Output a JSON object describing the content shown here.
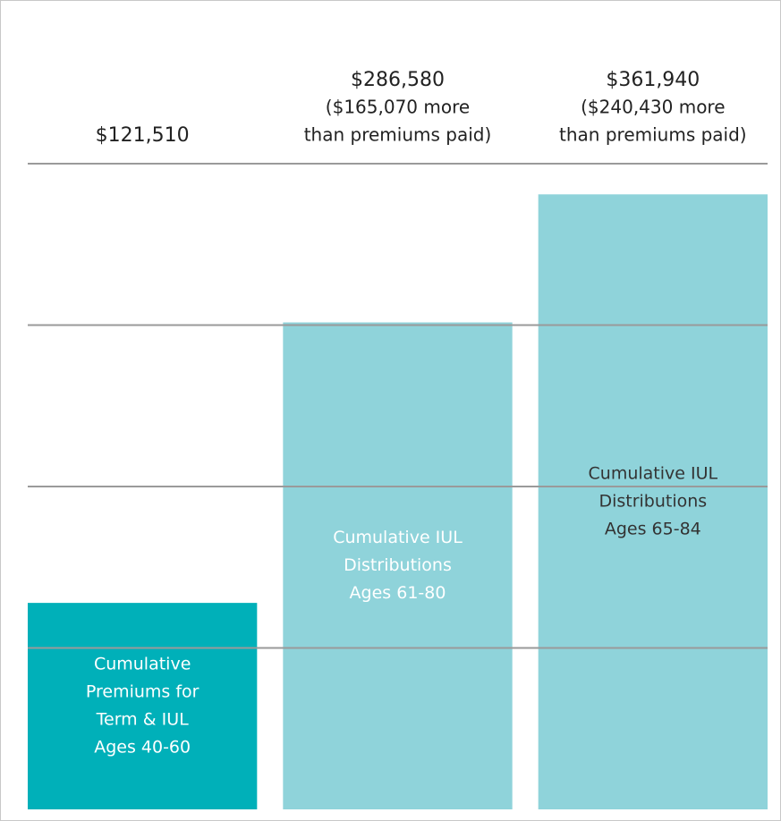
{
  "chart_data": {
    "type": "bar",
    "categories": [
      [
        "Cumulative",
        "Premiums for",
        "Term & IUL",
        "Ages 40-60"
      ],
      [
        "Cumulative IUL",
        "Distributions",
        "Ages 61-80"
      ],
      [
        "Cumulative IUL",
        "Distributions",
        "Ages 65-84"
      ]
    ],
    "values": [
      121510,
      286580,
      361940
    ],
    "value_labels": [
      "$121,510",
      "$286,580",
      "$361,940"
    ],
    "value_notes": [
      null,
      [
        "($165,070 more",
        "than premiums paid)"
      ],
      [
        "($240,430 more",
        "than premiums paid)"
      ]
    ],
    "colors": [
      "#00b0b9",
      "#8fd3da",
      "#8fd3da"
    ],
    "ylim": [
      0,
      380000
    ],
    "yticks": [
      95000,
      190000,
      285000,
      380000
    ],
    "grid": true
  }
}
